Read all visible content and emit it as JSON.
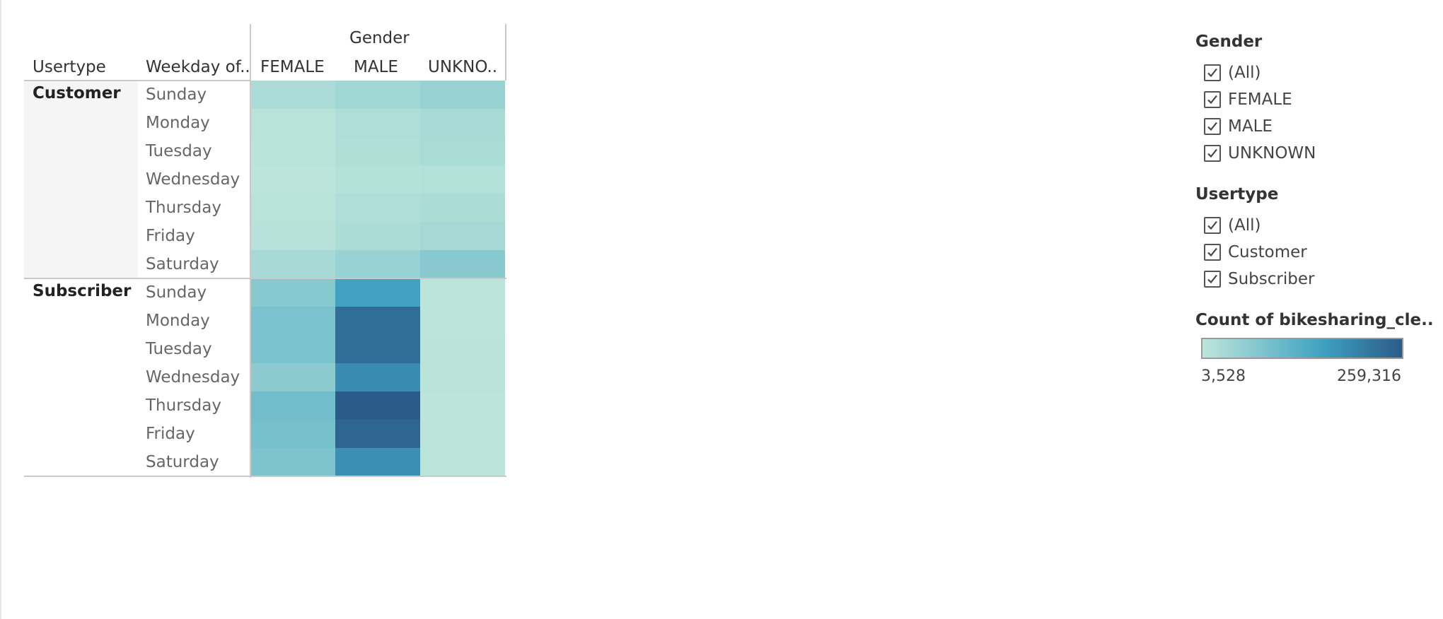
{
  "chart_data": {
    "type": "heatmap",
    "column_dimension": "Gender",
    "column_headers": [
      "Usertype",
      "Weekday of..",
      "FEMALE",
      "MALE",
      "UNKNO.."
    ],
    "row_groups": [
      "Customer",
      "Subscriber"
    ],
    "days": [
      "Sunday",
      "Monday",
      "Tuesday",
      "Wednesday",
      "Thursday",
      "Friday",
      "Saturday"
    ],
    "columns": [
      "FEMALE",
      "MALE",
      "UNKNOWN"
    ],
    "measure": "Count of bikesharing_cle..",
    "color_range": [
      3528,
      259316
    ],
    "color_ramp": [
      "#bde6da",
      "#3fa2c1",
      "#2b5b89"
    ],
    "values": {
      "Customer": [
        [
          25000,
          38000,
          48000
        ],
        [
          10000,
          22000,
          28000
        ],
        [
          8000,
          20000,
          27000
        ],
        [
          6000,
          15000,
          16000
        ],
        [
          10000,
          22000,
          26000
        ],
        [
          12000,
          26000,
          32000
        ],
        [
          30000,
          48000,
          68000
        ]
      ],
      "Subscriber": [
        [
          70000,
          155000,
          6000
        ],
        [
          85000,
          232000,
          6000
        ],
        [
          85000,
          232000,
          7000
        ],
        [
          65000,
          190000,
          7000
        ],
        [
          95000,
          259316,
          6000
        ],
        [
          90000,
          245000,
          6000
        ],
        [
          80000,
          185000,
          6000
        ]
      ]
    }
  },
  "legends": {
    "gender": {
      "title": "Gender",
      "items": [
        "(All)",
        "FEMALE",
        "MALE",
        "UNKNOWN"
      ]
    },
    "usertype": {
      "title": "Usertype",
      "items": [
        "(All)",
        "Customer",
        "Subscriber"
      ]
    },
    "color": {
      "title": "Count of bikesharing_cle..",
      "min_label": "3,528",
      "max_label": "259,316"
    }
  }
}
